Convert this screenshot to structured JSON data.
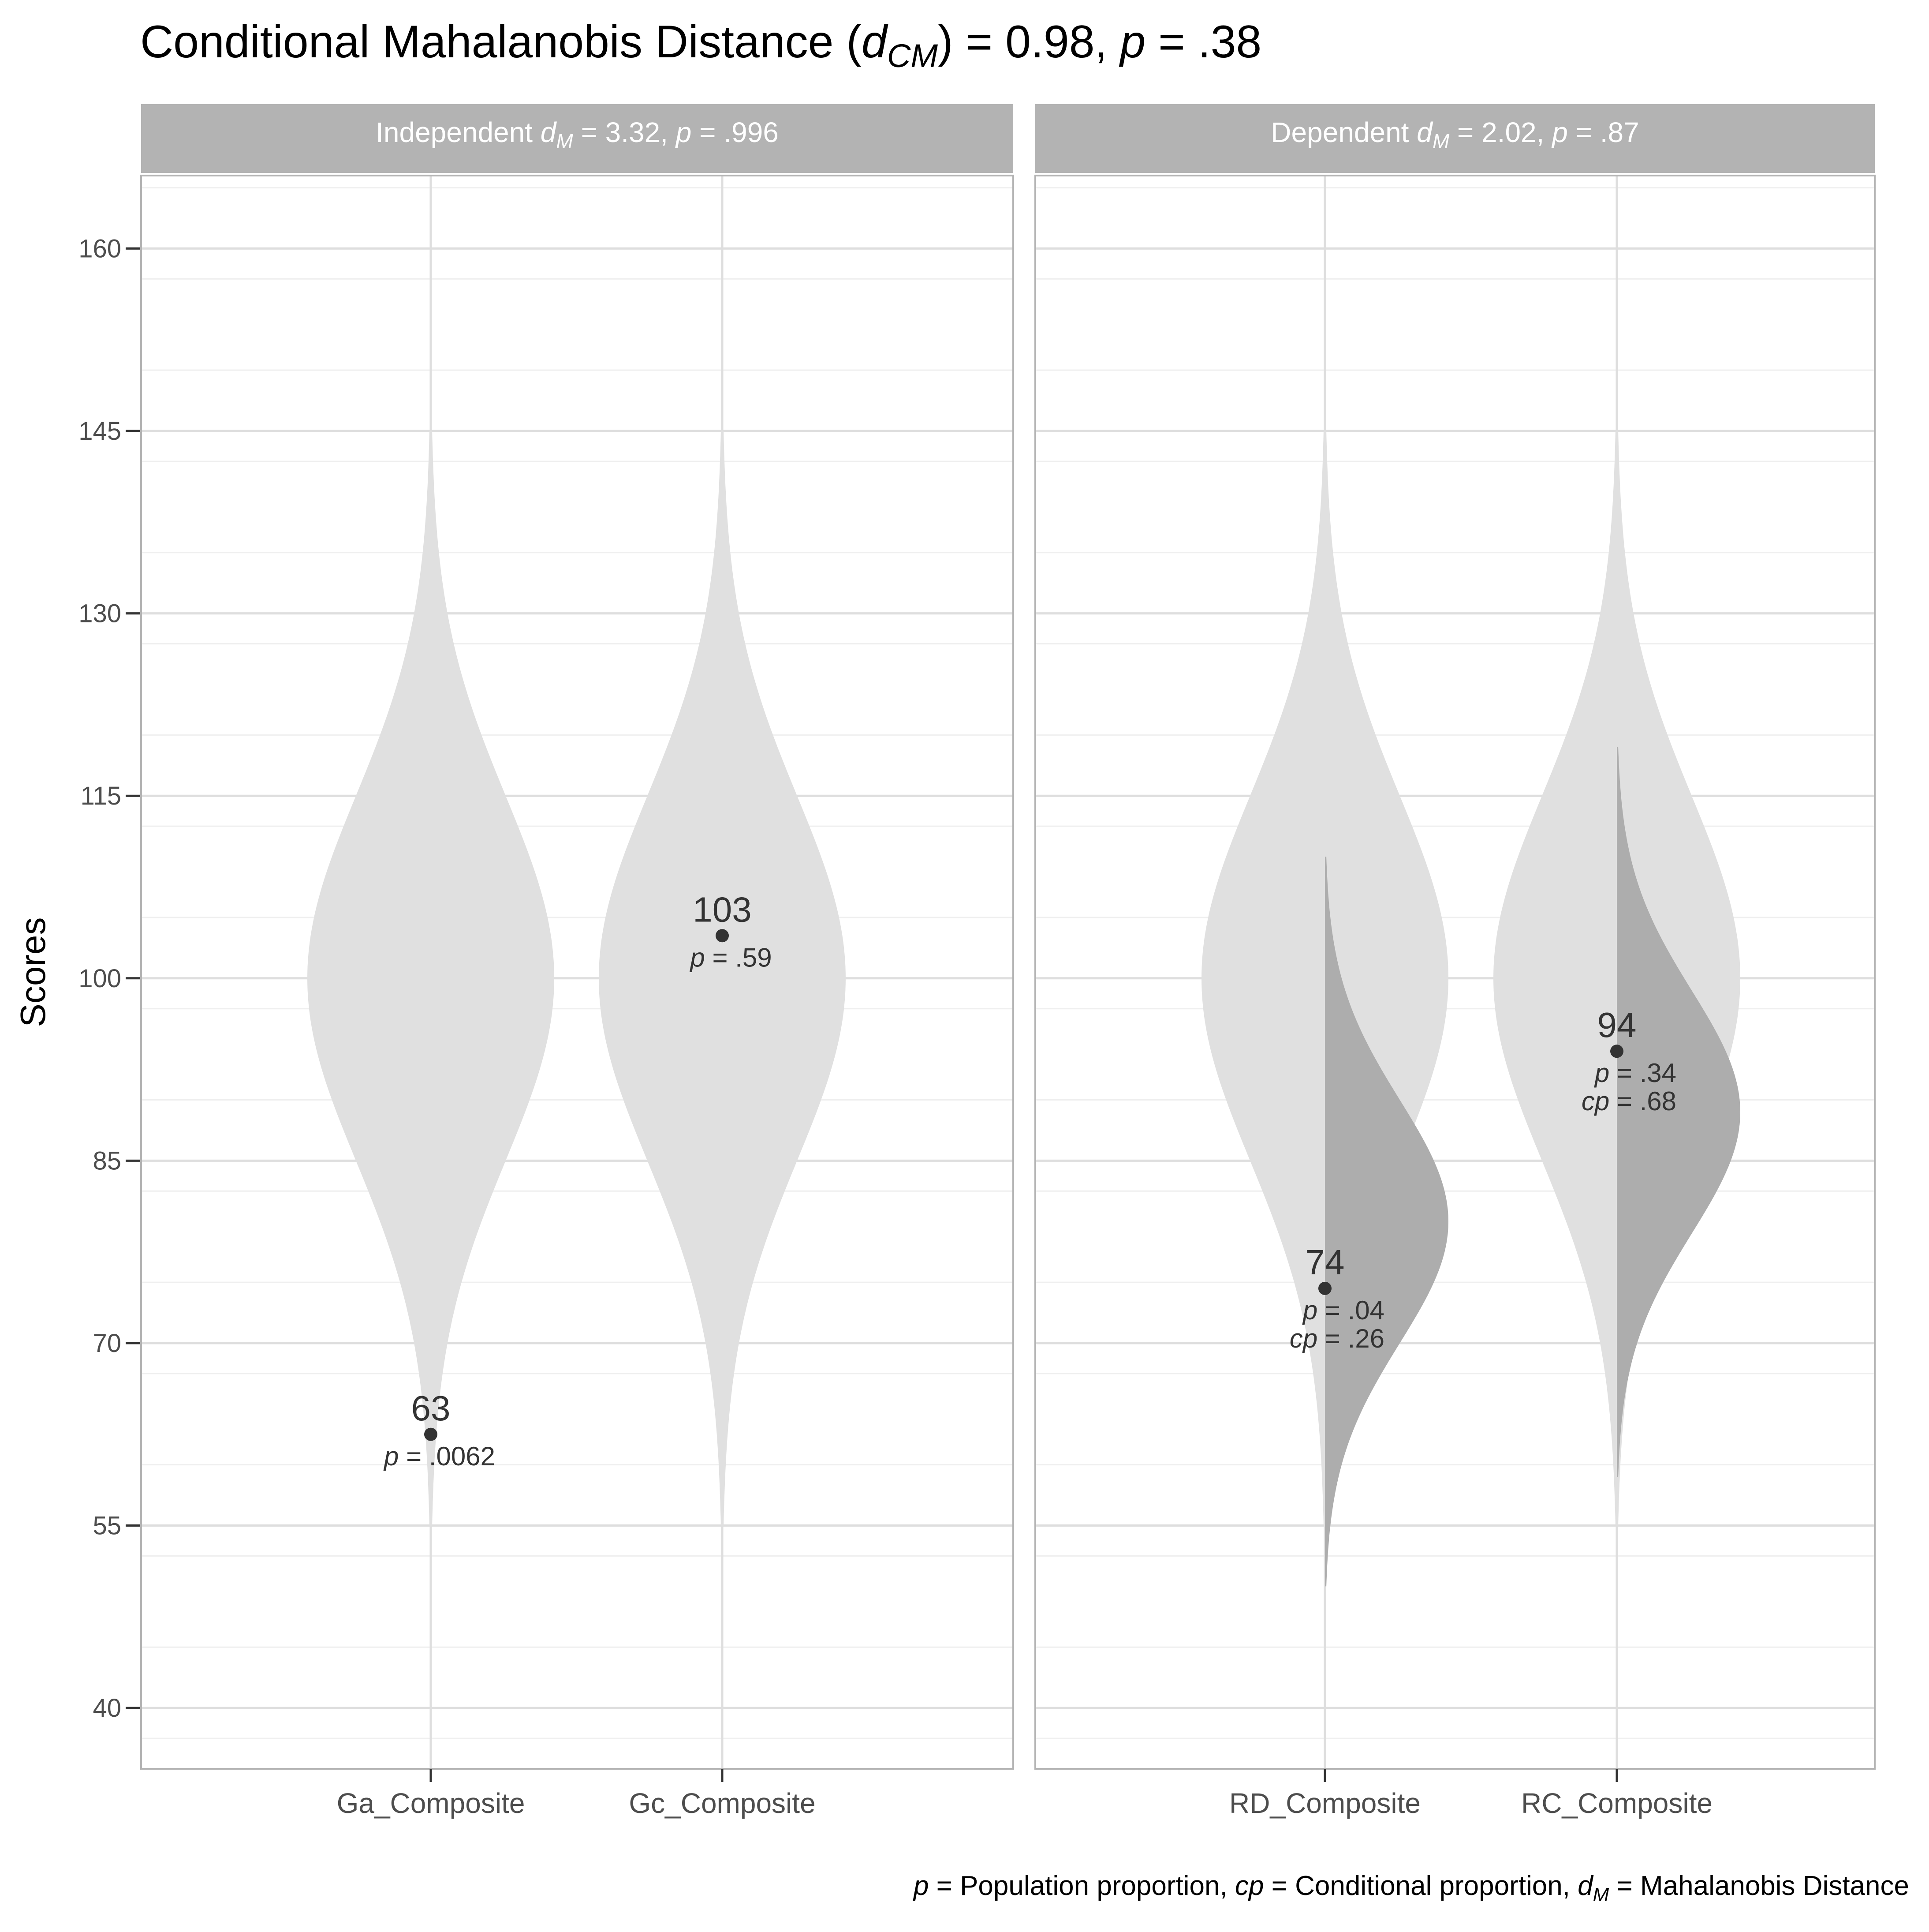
{
  "chart_data": {
    "type": "violin",
    "title": {
      "prefix": "Conditional Mahalanobis Distance (",
      "stat_symbol": "d",
      "stat_sub": "CM",
      "suffix_1": ") = 0.98, ",
      "p_symbol": "p",
      "suffix_2": " = .38"
    },
    "ylabel": "Scores",
    "ylim": [
      35,
      166
    ],
    "yticks": [
      40,
      55,
      70,
      85,
      100,
      115,
      130,
      145,
      160
    ],
    "caption": {
      "p_symbol": "p",
      "part1": " = Population proportion, ",
      "cp_symbol": "cp",
      "part2": " = Conditional proportion, ",
      "dm_symbol": "d",
      "dm_sub": "M",
      "part3": " = Mahalanobis Distance"
    },
    "panels": [
      {
        "strip": {
          "prefix": "Independent ",
          "d": "d",
          "sub": "M",
          "mid": " = 3.32, ",
          "p": "p",
          "tail": " = .996"
        },
        "categories": [
          {
            "name": "Ga_Composite",
            "violin_center": 100,
            "violin_sd": 15,
            "conditional_center": null,
            "conditional_sd": null,
            "score": 62.5,
            "score_label": "63",
            "p_label": ".0062",
            "cp_label": null
          },
          {
            "name": "Gc_Composite",
            "violin_center": 100,
            "violin_sd": 15,
            "conditional_center": null,
            "conditional_sd": null,
            "score": 103.5,
            "score_label": "103",
            "p_label": ".59",
            "cp_label": null
          }
        ]
      },
      {
        "strip": {
          "prefix": "Dependent ",
          "d": "d",
          "sub": "M",
          "mid": " = 2.02, ",
          "p": "p",
          "tail": " = .87"
        },
        "categories": [
          {
            "name": "RD_Composite",
            "violin_center": 100,
            "violin_sd": 15,
            "conditional_center": 80,
            "conditional_sd": 10,
            "score": 74.5,
            "score_label": "74",
            "p_label": ".04",
            "cp_label": ".26"
          },
          {
            "name": "RC_Composite",
            "violin_center": 100,
            "violin_sd": 15,
            "conditional_center": 89,
            "conditional_sd": 10,
            "score": 94,
            "score_label": "94",
            "p_label": ".34",
            "cp_label": ".68"
          }
        ]
      }
    ],
    "colors": {
      "violin_fill": "#e0e0e0",
      "conditional_fill": "#adadad",
      "strip_fill": "#b3b3b3",
      "strip_text": "#ffffff",
      "grid_major": "#dedede",
      "grid_minor": "#efefef",
      "panel_border": "#b3b3b3",
      "point": "#333333",
      "label_text": "#333333",
      "axis_text": "#4d4d4d",
      "title_text": "#000000"
    }
  }
}
